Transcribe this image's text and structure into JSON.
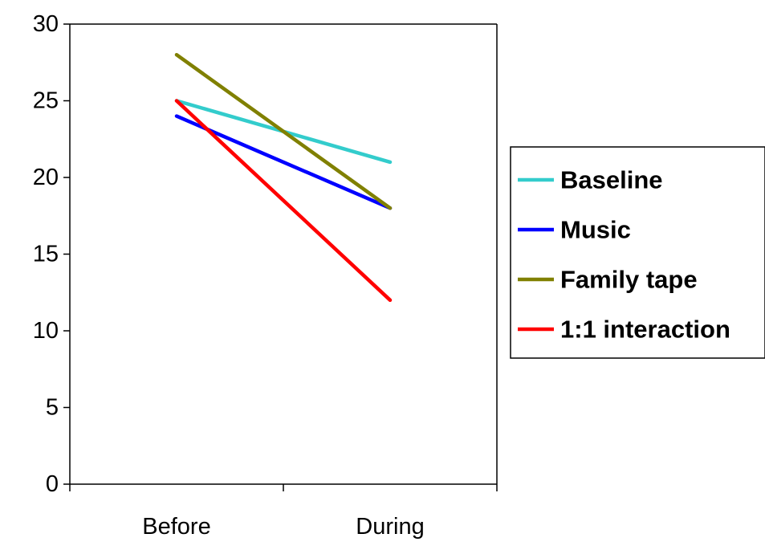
{
  "chart_data": {
    "type": "line",
    "title": "",
    "xlabel": "",
    "ylabel": "",
    "categories": [
      "Before",
      "During"
    ],
    "ylim": [
      0,
      30
    ],
    "yticks": [
      0,
      5,
      10,
      15,
      20,
      25,
      30
    ],
    "grid": false,
    "legend_position": "right",
    "series": [
      {
        "name": "Baseline",
        "values": [
          25,
          21
        ],
        "color": "#33CCCC"
      },
      {
        "name": "Music",
        "values": [
          24,
          18
        ],
        "color": "#0000FF"
      },
      {
        "name": "Family tape",
        "values": [
          28,
          18
        ],
        "color": "#808000"
      },
      {
        "name": "1:1 interaction",
        "values": [
          25,
          12
        ],
        "color": "#FF0000"
      }
    ]
  }
}
